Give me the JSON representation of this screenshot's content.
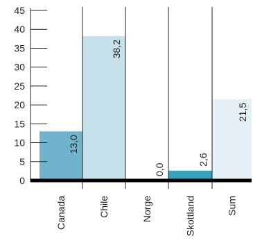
{
  "chart_data": {
    "type": "bar",
    "categories": [
      "Canada",
      "Chile",
      "Norge",
      "Skottland",
      "Sum"
    ],
    "values": [
      13.0,
      38.2,
      0.0,
      2.6,
      21.5
    ],
    "value_labels": [
      "13,0",
      "38,2",
      "0,0",
      "2,6",
      "21,5"
    ],
    "colors": [
      "#6fb3cc",
      "#c7e1ea",
      "#6fb3cc",
      "#35a1bb",
      "#e5f1f6"
    ],
    "yticks": [
      "0",
      "5",
      "10",
      "15",
      "20",
      "25",
      "30",
      "35",
      "40",
      "45"
    ],
    "ylim": [
      0,
      45
    ],
    "grid": false,
    "legend": "none",
    "title": "",
    "xlabel": "",
    "ylabel": ""
  }
}
